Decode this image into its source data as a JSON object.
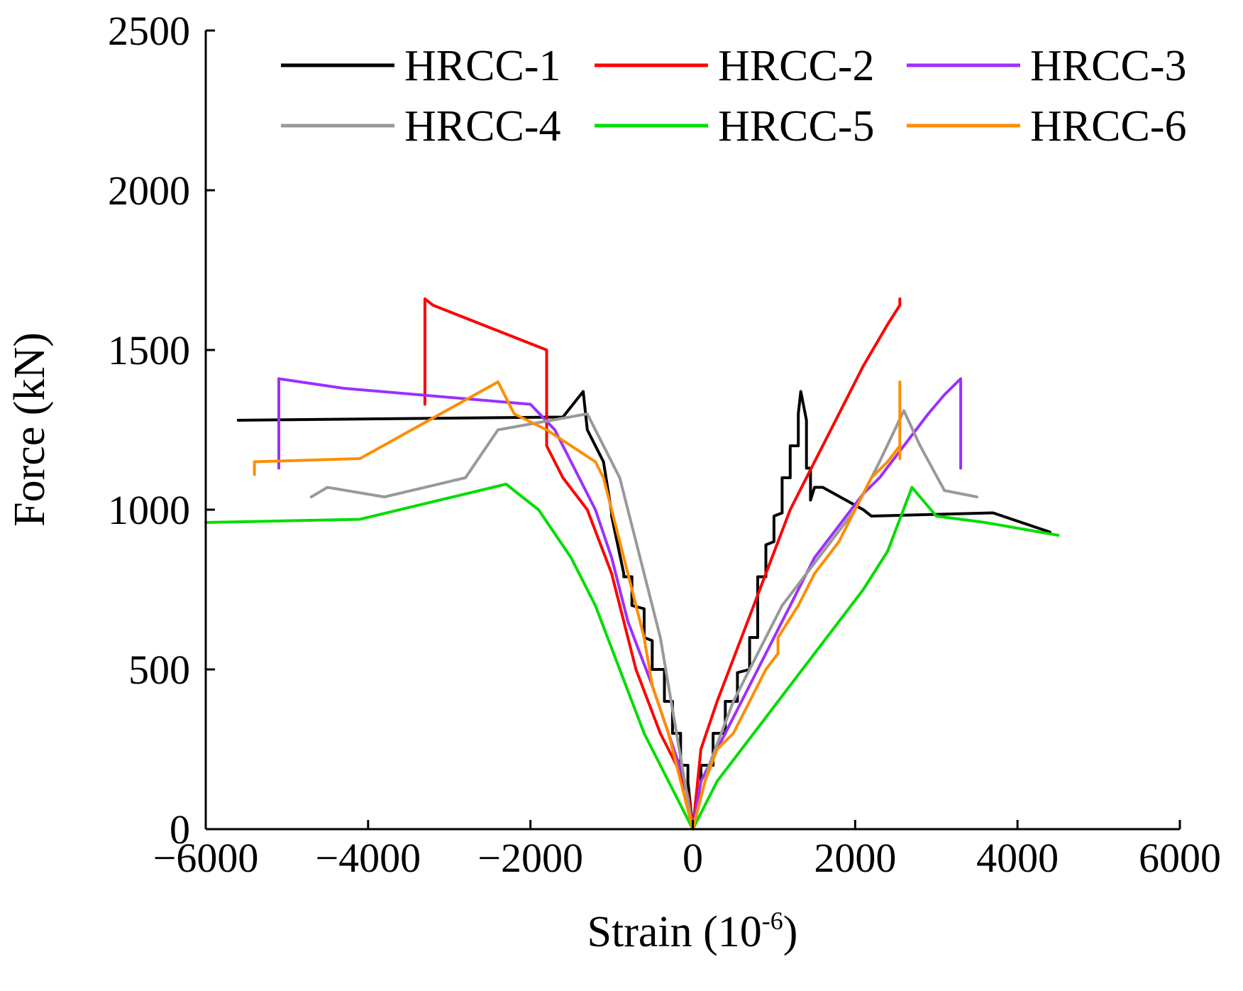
{
  "chart_data": {
    "type": "line",
    "title": "",
    "xlabel": "Strain (10",
    "xlabel_sup": "-6",
    "xlabel_close": ")",
    "ylabel": "Force (kN)",
    "xlim": [
      -6000,
      6000
    ],
    "ylim": [
      0,
      2500
    ],
    "xticks": [
      "−6000",
      "−4000",
      "−2000",
      "0",
      "2000",
      "4000",
      "6000"
    ],
    "yticks": [
      "0",
      "500",
      "1000",
      "1500",
      "2000",
      "2500"
    ],
    "grid": false,
    "legend_position": "top",
    "series": [
      {
        "name": "HRCC-1",
        "color": "#000000",
        "x": [
          0,
          -60,
          -60,
          -150,
          -150,
          -250,
          -250,
          -350,
          -350,
          -500,
          -500,
          -600,
          -600,
          -750,
          -750,
          -850,
          -850,
          -1000,
          -1000,
          -1100,
          -1100,
          -1200,
          -1200,
          -1300,
          -1300,
          -1350,
          -1600,
          -5600,
          null,
          0,
          100,
          100,
          250,
          250,
          400,
          400,
          550,
          550,
          700,
          700,
          800,
          800,
          900,
          900,
          1000,
          1000,
          1100,
          1100,
          1200,
          1200,
          1300,
          1300,
          1330,
          1400,
          1400,
          1450,
          1450,
          1500,
          1600,
          2100,
          2200,
          3700,
          4400
        ],
        "y": [
          0,
          150,
          200,
          200,
          300,
          300,
          400,
          400,
          500,
          500,
          590,
          600,
          690,
          700,
          790,
          790,
          800,
          980,
          990,
          1150,
          1150,
          1200,
          1200,
          1250,
          1250,
          1370,
          1290,
          1280,
          null,
          0,
          150,
          200,
          200,
          300,
          300,
          400,
          400,
          490,
          500,
          600,
          600,
          790,
          790,
          890,
          900,
          980,
          990,
          1100,
          1100,
          1200,
          1200,
          1300,
          1370,
          1280,
          1130,
          1130,
          1030,
          1070,
          1070,
          1000,
          980,
          990,
          930
        ]
      },
      {
        "name": "HRCC-2",
        "color": "#ff0000",
        "x": [
          0,
          -50,
          -200,
          -400,
          -700,
          -1000,
          -1300,
          -1600,
          -1800,
          -1800,
          -3200,
          -3300,
          -3300,
          null,
          0,
          100,
          300,
          600,
          900,
          1200,
          1500,
          1800,
          2100,
          2400,
          2550,
          2550
        ],
        "y": [
          0,
          100,
          200,
          300,
          500,
          800,
          1000,
          1100,
          1200,
          1500,
          1640,
          1660,
          1330,
          null,
          0,
          250,
          400,
          600,
          800,
          1000,
          1150,
          1300,
          1450,
          1580,
          1640,
          1660
        ]
      },
      {
        "name": "HRCC-3",
        "color": "#9b30ff",
        "x": [
          0,
          -100,
          -300,
          -500,
          -800,
          -1000,
          -1200,
          -1500,
          -1700,
          -2000,
          -4300,
          -5100,
          -5100,
          null,
          0,
          100,
          300,
          600,
          900,
          1200,
          1500,
          1800,
          2100,
          2300,
          2600,
          2900,
          3100,
          3300,
          3300
        ],
        "y": [
          0,
          150,
          300,
          450,
          650,
          850,
          1000,
          1150,
          1250,
          1330,
          1380,
          1410,
          1130,
          null,
          0,
          150,
          250,
          400,
          550,
          700,
          850,
          950,
          1050,
          1100,
          1200,
          1300,
          1360,
          1410,
          1130
        ]
      },
      {
        "name": "HRCC-4",
        "color": "#999999",
        "x": [
          0,
          -200,
          -400,
          -600,
          -900,
          -1200,
          -1300,
          -2400,
          -2800,
          -3800,
          -4500,
          -4700,
          null,
          0,
          200,
          500,
          800,
          1100,
          1400,
          1700,
          2000,
          2300,
          2600,
          2800,
          3100,
          3500
        ],
        "y": [
          0,
          300,
          600,
          800,
          1100,
          1250,
          1300,
          1250,
          1100,
          1040,
          1070,
          1040,
          null,
          0,
          200,
          400,
          550,
          700,
          800,
          900,
          1000,
          1150,
          1310,
          1200,
          1060,
          1040
        ]
      },
      {
        "name": "HRCC-5",
        "color": "#00dd00",
        "x": [
          0,
          -300,
          -600,
          -900,
          -1200,
          -1500,
          -1900,
          -2300,
          -4100,
          -6000,
          null,
          0,
          300,
          600,
          900,
          1200,
          1500,
          1800,
          2100,
          2400,
          2700,
          3000,
          3600,
          4500
        ],
        "y": [
          0,
          150,
          300,
          500,
          700,
          850,
          1000,
          1080,
          970,
          960,
          null,
          0,
          150,
          250,
          350,
          450,
          550,
          650,
          750,
          870,
          1070,
          980,
          960,
          920
        ]
      },
      {
        "name": "HRCC-6",
        "color": "#ff8c00",
        "x": [
          0,
          -100,
          -300,
          -500,
          -600,
          -700,
          -800,
          -900,
          -1000,
          -1100,
          -1200,
          -1500,
          -1800,
          -2200,
          -2400,
          -4100,
          -5400,
          -5400,
          null,
          0,
          150,
          300,
          500,
          700,
          900,
          1050,
          1050,
          1300,
          1500,
          1800,
          2000,
          2200,
          2400,
          2550,
          2550,
          2550,
          2550
        ],
        "y": [
          0,
          100,
          300,
          450,
          600,
          700,
          800,
          900,
          1000,
          1100,
          1150,
          1200,
          1250,
          1300,
          1400,
          1160,
          1150,
          1110,
          null,
          0,
          150,
          250,
          300,
          400,
          500,
          550,
          600,
          700,
          800,
          900,
          1000,
          1100,
          1150,
          1200,
          1400,
          1160,
          1310
        ]
      }
    ]
  }
}
